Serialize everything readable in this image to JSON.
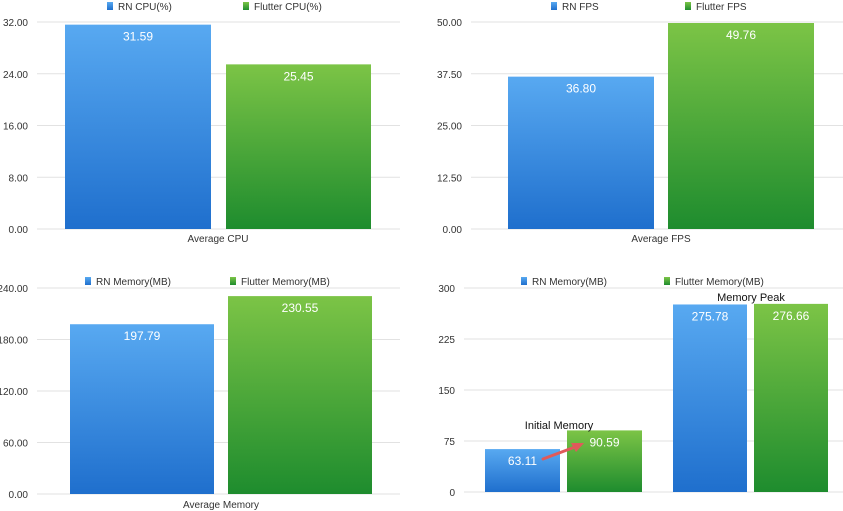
{
  "colors": {
    "rn_top": "#58a9f1",
    "rn_bottom": "#1f6fcd",
    "flutter_top": "#7cc446",
    "flutter_bottom": "#1e8c2e",
    "grid": "#e2e2e2",
    "axis_text": "#333333",
    "arrow": "#e05a5a"
  },
  "chart_data": [
    {
      "type": "bar",
      "categories": [
        "Average CPU"
      ],
      "series": [
        {
          "name": "RN CPU(%)",
          "values": [
            31.59
          ]
        },
        {
          "name": "Flutter CPU(%)",
          "values": [
            25.45
          ]
        }
      ],
      "ylim": [
        0,
        32
      ],
      "yticks": [
        "0.00",
        "8.00",
        "16.00",
        "24.00",
        "32.00"
      ],
      "legend_position": "top",
      "grid": true,
      "value_labels": [
        "31.59",
        "25.45"
      ]
    },
    {
      "type": "bar",
      "categories": [
        "Average FPS"
      ],
      "series": [
        {
          "name": "RN FPS",
          "values": [
            36.8
          ]
        },
        {
          "name": "Flutter FPS",
          "values": [
            49.76
          ]
        }
      ],
      "ylim": [
        0,
        50
      ],
      "yticks": [
        "0.00",
        "12.50",
        "25.00",
        "37.50",
        "50.00"
      ],
      "legend_position": "top",
      "grid": true,
      "value_labels": [
        "36.80",
        "49.76"
      ]
    },
    {
      "type": "bar",
      "categories": [
        "Average Memory"
      ],
      "series": [
        {
          "name": "RN Memory(MB)",
          "values": [
            197.79
          ]
        },
        {
          "name": "Flutter Memory(MB)",
          "values": [
            230.55
          ]
        }
      ],
      "ylim": [
        0,
        240
      ],
      "yticks": [
        "0.00",
        "60.00",
        "120.00",
        "180.00",
        "240.00"
      ],
      "legend_position": "top",
      "grid": true,
      "value_labels": [
        "197.79",
        "230.55"
      ]
    },
    {
      "type": "bar",
      "categories": [
        "Initial Memory",
        "Memory Peak"
      ],
      "series": [
        {
          "name": "RN Memory(MB)",
          "values": [
            63.11,
            275.78
          ]
        },
        {
          "name": "Flutter Memory(MB)",
          "values": [
            90.59,
            276.66
          ]
        }
      ],
      "ylim": [
        0,
        300
      ],
      "yticks": [
        "0",
        "75",
        "150",
        "225",
        "300"
      ],
      "legend_position": "top",
      "grid": true,
      "value_labels": [
        [
          "63.11",
          "275.78"
        ],
        [
          "90.59",
          "276.66"
        ]
      ],
      "annotations": [
        "Initial Memory",
        "Memory Peak"
      ],
      "arrow": {
        "from": "63.11",
        "to": "90.59"
      }
    }
  ]
}
